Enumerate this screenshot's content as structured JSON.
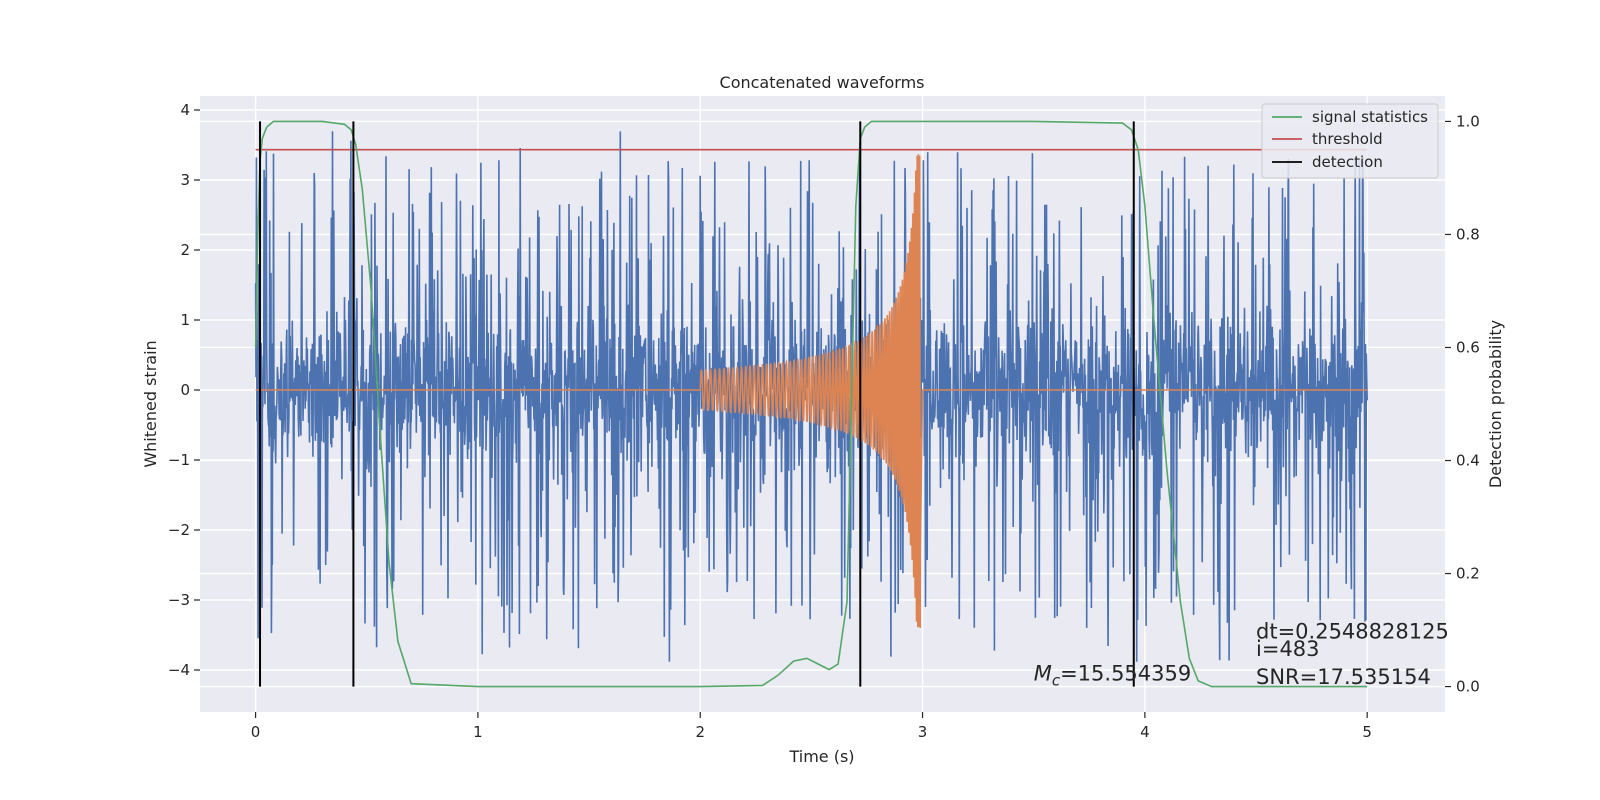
{
  "chart_data": {
    "type": "line",
    "title": "Concatenated waveforms",
    "xlabel": "Time (s)",
    "ylabel": "Whitened strain",
    "ylabel_right": "Detection probability",
    "xlim": [
      -0.25,
      5.35
    ],
    "ylim": [
      -4.6,
      4.2
    ],
    "ylim_right": [
      -0.045,
      1.045
    ],
    "x_ticks": [
      0,
      1,
      2,
      3,
      4,
      5
    ],
    "y_ticks": [
      -4,
      -3,
      -2,
      -1,
      0,
      1,
      2,
      3,
      4
    ],
    "y_ticks_right": [
      0.0,
      0.2,
      0.4,
      0.6,
      0.8,
      1.0
    ],
    "x_tick_labels": [
      "0",
      "1",
      "2",
      "3",
      "4",
      "5"
    ],
    "y_tick_labels": [
      "−4",
      "−3",
      "−2",
      "−1",
      "0",
      "1",
      "2",
      "3",
      "4"
    ],
    "y_tick_labels_right": [
      "0.0",
      "0.2",
      "0.4",
      "0.6",
      "0.8",
      "1.0"
    ],
    "grid": true,
    "legend_position": "top-right",
    "legend": [
      {
        "label": "signal statistics",
        "color": "#55a868"
      },
      {
        "label": "threshold",
        "color": "#c44e52"
      },
      {
        "label": "detection",
        "color": "#000000"
      }
    ],
    "series": [
      {
        "kind": "noise",
        "color": "#4c72b0",
        "x_range": [
          0,
          5
        ],
        "baseline_amplitude": 0.55,
        "peak_amplitude": 3.7
      },
      {
        "kind": "chirp",
        "color": "#dd8452",
        "x_range": [
          0,
          5
        ],
        "chirp_start": 2.0,
        "chirp_end": 2.99,
        "start_amplitude": 0.28,
        "peak_amplitude": 3.4
      },
      {
        "kind": "probability",
        "name": "signal statistics",
        "color": "#55a868",
        "axis": "right",
        "x": [
          0,
          0.01,
          0.02,
          0.03,
          0.05,
          0.08,
          0.12,
          0.3,
          0.4,
          0.43,
          0.45,
          0.48,
          0.52,
          0.56,
          0.6,
          0.64,
          0.7,
          1.0,
          1.5,
          2.0,
          2.28,
          2.35,
          2.42,
          2.48,
          2.53,
          2.58,
          2.62,
          2.66,
          2.68,
          2.7,
          2.72,
          2.74,
          2.77,
          2.82,
          2.9,
          3.5,
          3.9,
          3.94,
          3.97,
          4.0,
          4.04,
          4.1,
          4.16,
          4.2,
          4.24,
          4.3,
          4.5,
          4.8,
          5.0
        ],
        "values": [
          0.6,
          0.8,
          0.93,
          0.97,
          0.99,
          1.0,
          1.0,
          1.0,
          0.995,
          0.985,
          0.96,
          0.88,
          0.7,
          0.45,
          0.22,
          0.08,
          0.005,
          0.0,
          0.0,
          0.0,
          0.002,
          0.02,
          0.045,
          0.05,
          0.04,
          0.03,
          0.04,
          0.15,
          0.5,
          0.85,
          0.97,
          0.99,
          1.0,
          1.0,
          1.0,
          1.0,
          0.997,
          0.985,
          0.95,
          0.85,
          0.65,
          0.38,
          0.15,
          0.05,
          0.01,
          0.0,
          0.0,
          0.0,
          0.0
        ]
      },
      {
        "kind": "threshold",
        "name": "threshold",
        "color": "#c44e52",
        "axis": "right",
        "x": [
          0,
          5
        ],
        "value": 0.95
      }
    ],
    "detections": {
      "color": "#000000",
      "x": [
        0.02,
        0.44,
        2.72,
        3.95
      ]
    },
    "annotations": [
      {
        "text": "Mc=15.554359",
        "main": "M",
        "sub": "c",
        "rest": "=15.554359",
        "x": 3.5,
        "y": -4.15
      },
      {
        "text": "dt=0.2548828125",
        "x": 4.5,
        "y": -3.55
      },
      {
        "text": " i=483",
        "x": 4.5,
        "y": -3.8
      },
      {
        "text": "SNR=17.535154",
        "x": 4.5,
        "y": -4.2
      }
    ]
  }
}
